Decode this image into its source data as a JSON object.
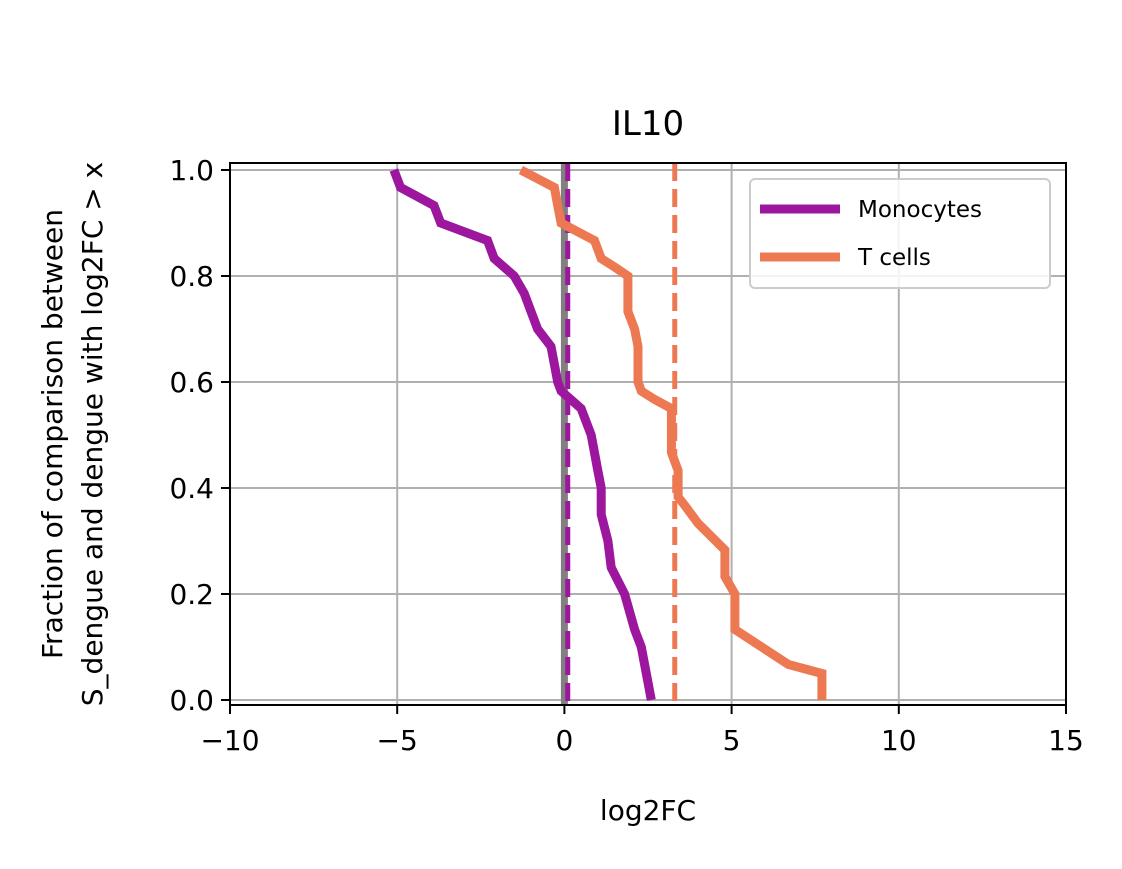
{
  "chart_data": {
    "type": "line",
    "title": "IL10",
    "xlabel": "log2FC",
    "ylabel_line1": "Fraction of comparison between",
    "ylabel_line2": "S_dengue and dengue with log2FC > x",
    "xlim": [
      -10,
      15
    ],
    "ylim": [
      0.0,
      1.0
    ],
    "xticks": [
      -10,
      -5,
      0,
      5,
      10,
      15
    ],
    "xtick_labels": [
      "−10",
      "−5",
      "0",
      "5",
      "10",
      "15"
    ],
    "yticks": [
      0.0,
      0.2,
      0.4,
      0.6,
      0.8,
      1.0
    ],
    "ytick_labels": [
      "0.0",
      "0.2",
      "0.4",
      "0.6",
      "0.8",
      "1.0"
    ],
    "grid": true,
    "legend_position": "top-right",
    "reference_lines": [
      {
        "x": 0.0,
        "style": "solid",
        "color": "#808080"
      },
      {
        "x": 0.1,
        "style": "dashed",
        "color": "#9c179e"
      },
      {
        "x": 3.3,
        "style": "dashed",
        "color": "#ed7953"
      }
    ],
    "series": [
      {
        "name": "Monocytes",
        "color": "#9c179e",
        "points": [
          [
            -5.1,
            1.0
          ],
          [
            -4.9,
            0.967
          ],
          [
            -4.4,
            0.95
          ],
          [
            -3.9,
            0.933
          ],
          [
            -3.7,
            0.9
          ],
          [
            -2.3,
            0.867
          ],
          [
            -2.1,
            0.833
          ],
          [
            -1.5,
            0.8
          ],
          [
            -1.2,
            0.767
          ],
          [
            -1.0,
            0.733
          ],
          [
            -0.8,
            0.7
          ],
          [
            -0.4,
            0.667
          ],
          [
            -0.3,
            0.633
          ],
          [
            -0.2,
            0.6
          ],
          [
            -0.1,
            0.583
          ],
          [
            0.5,
            0.55
          ],
          [
            0.8,
            0.5
          ],
          [
            1.0,
            0.433
          ],
          [
            1.1,
            0.4
          ],
          [
            1.1,
            0.35
          ],
          [
            1.3,
            0.3
          ],
          [
            1.4,
            0.25
          ],
          [
            1.8,
            0.2
          ],
          [
            2.1,
            0.133
          ],
          [
            2.3,
            0.1
          ],
          [
            2.5,
            0.033
          ],
          [
            2.6,
            0.0
          ]
        ]
      },
      {
        "name": "T cells",
        "color": "#ed7953",
        "points": [
          [
            -1.3,
            1.0
          ],
          [
            -0.3,
            0.967
          ],
          [
            -0.2,
            0.933
          ],
          [
            -0.1,
            0.9
          ],
          [
            0.9,
            0.867
          ],
          [
            1.1,
            0.833
          ],
          [
            1.5,
            0.817
          ],
          [
            1.9,
            0.8
          ],
          [
            1.9,
            0.733
          ],
          [
            2.1,
            0.7
          ],
          [
            2.2,
            0.667
          ],
          [
            2.2,
            0.6
          ],
          [
            2.3,
            0.583
          ],
          [
            2.7,
            0.567
          ],
          [
            3.2,
            0.55
          ],
          [
            3.2,
            0.467
          ],
          [
            3.4,
            0.433
          ],
          [
            3.4,
            0.383
          ],
          [
            3.6,
            0.367
          ],
          [
            4.0,
            0.333
          ],
          [
            4.8,
            0.283
          ],
          [
            4.8,
            0.233
          ],
          [
            5.1,
            0.2
          ],
          [
            5.1,
            0.133
          ],
          [
            5.9,
            0.1
          ],
          [
            6.7,
            0.067
          ],
          [
            7.7,
            0.05
          ],
          [
            7.7,
            0.0
          ]
        ]
      }
    ]
  }
}
